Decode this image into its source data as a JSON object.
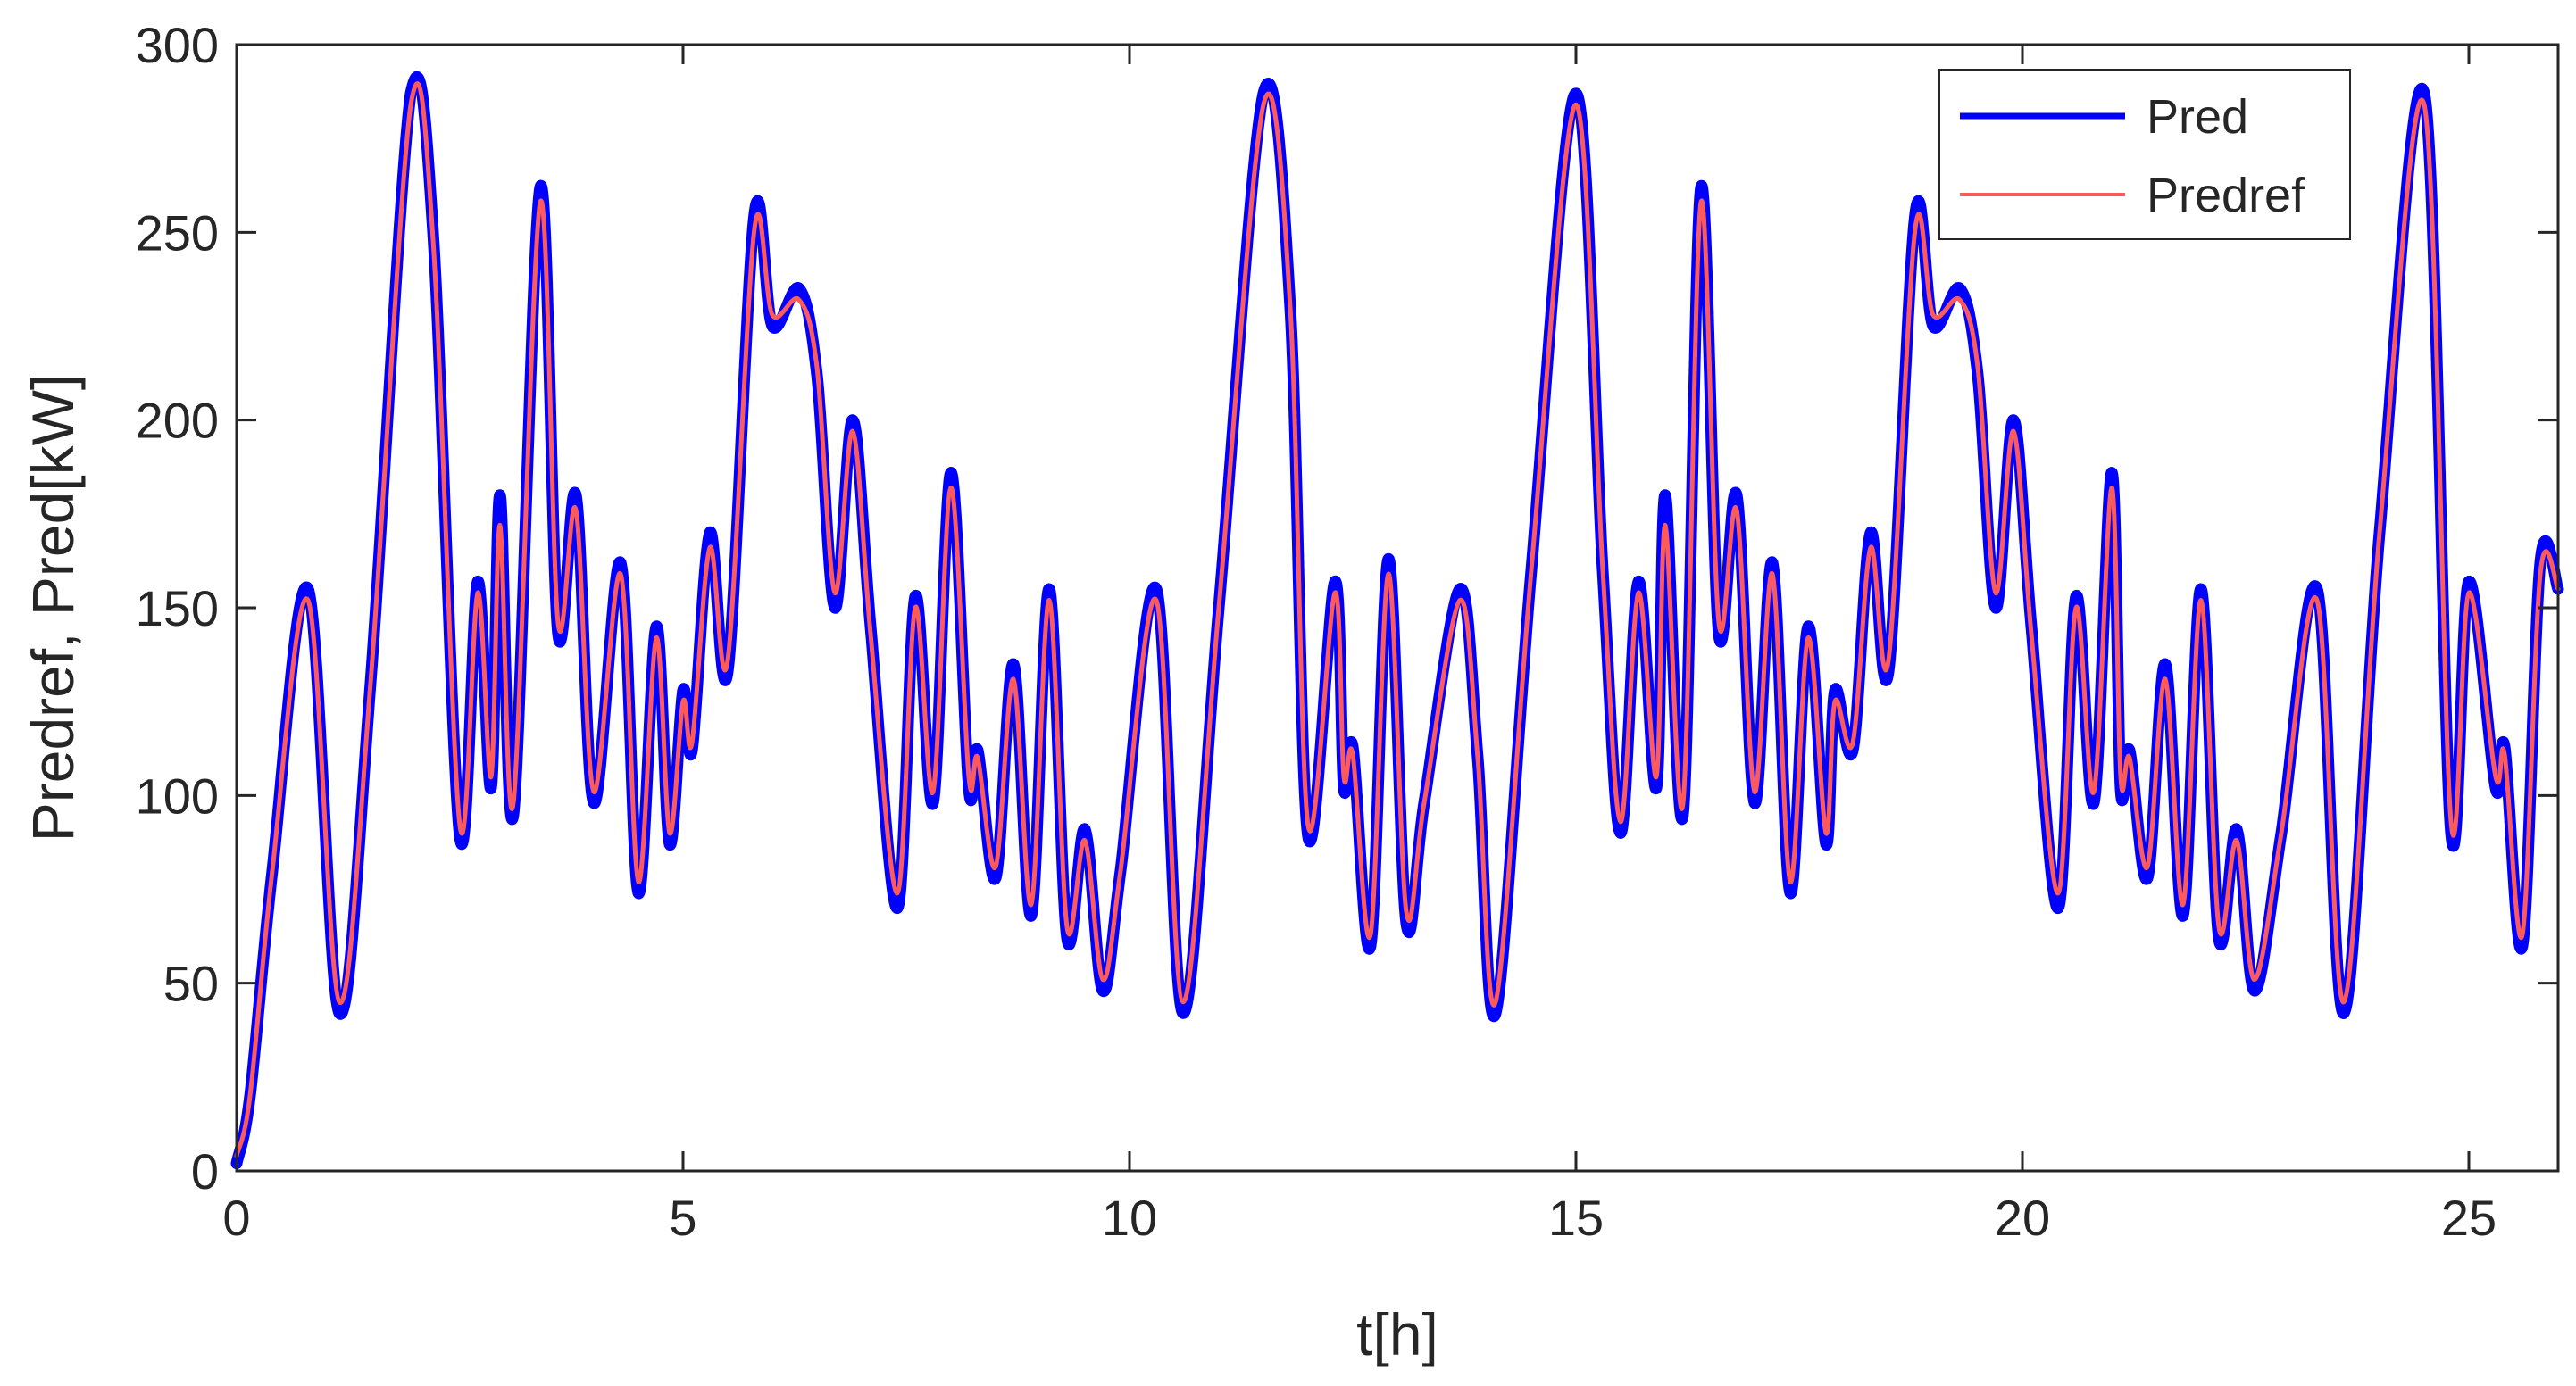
{
  "chart_data": {
    "type": "line",
    "xlabel": "t[h]",
    "ylabel": "Predref, Pred[kW]",
    "xlim": [
      0,
      26
    ],
    "ylim": [
      0,
      300
    ],
    "xticks": [
      0,
      5,
      10,
      15,
      20,
      25
    ],
    "yticks": [
      0,
      50,
      100,
      150,
      200,
      250,
      300
    ],
    "xtick_labels": [
      "0",
      "5",
      "10",
      "15",
      "20",
      "25"
    ],
    "ytick_labels": [
      "0",
      "50",
      "100",
      "150",
      "200",
      "250",
      "300"
    ],
    "grid": false,
    "legend_position": "top-right",
    "series": [
      {
        "name": "Pred",
        "color": "#0000ff",
        "x": [
          0,
          0.15,
          0.4,
          0.8,
          1.15,
          1.5,
          1.95,
          2.2,
          2.5,
          2.7,
          2.85,
          2.95,
          3.1,
          3.4,
          3.6,
          3.8,
          4.0,
          4.3,
          4.5,
          4.7,
          4.85,
          5.0,
          5.1,
          5.3,
          5.5,
          5.8,
          6.0,
          6.3,
          6.5,
          6.7,
          6.9,
          7.1,
          7.4,
          7.6,
          7.8,
          8.0,
          8.2,
          8.3,
          8.5,
          8.7,
          8.9,
          9.1,
          9.3,
          9.5,
          9.7,
          9.9,
          10.3,
          10.6,
          11.0,
          11.5,
          11.8,
          12.0,
          12.3,
          12.4,
          12.5,
          12.7,
          12.9,
          13.1,
          13.3,
          13.7,
          13.9,
          14.1,
          14.5,
          15.0,
          15.3,
          15.5,
          15.7,
          15.9,
          16.0,
          16.2,
          16.4,
          16.6,
          16.8,
          17.0,
          17.2,
          17.4,
          17.6,
          17.8,
          17.9,
          18.1,
          18.3,
          18.5,
          18.8,
          19.0,
          19.3,
          19.5,
          19.7,
          19.9,
          20.1,
          20.4,
          20.6,
          20.8,
          21.0,
          21.1,
          21.2,
          21.4,
          21.6,
          21.8,
          22.0,
          22.2,
          22.4,
          22.6,
          22.9,
          23.3,
          23.6,
          24.0,
          24.5,
          24.8,
          25.0,
          25.3,
          25.4,
          25.6,
          25.8,
          26.0
        ],
        "y": [
          2,
          20,
          80,
          155,
          42,
          130,
          287,
          250,
          89,
          157,
          102,
          180,
          95,
          262,
          143,
          180,
          98,
          162,
          74,
          145,
          87,
          128,
          112,
          170,
          133,
          255,
          225,
          235,
          212,
          150,
          200,
          145,
          70,
          153,
          98,
          186,
          102,
          112,
          78,
          135,
          68,
          155,
          62,
          91,
          48,
          80,
          155,
          42,
          150,
          287,
          230,
          89,
          157,
          102,
          113,
          60,
          163,
          66,
          98,
          155,
          110,
          42,
          160,
          287,
          160,
          90,
          157,
          102,
          180,
          95,
          262,
          143,
          180,
          98,
          162,
          74,
          145,
          87,
          128,
          112,
          170,
          133,
          255,
          225,
          235,
          212,
          150,
          200,
          145,
          70,
          153,
          98,
          186,
          102,
          112,
          78,
          135,
          68,
          155,
          62,
          91,
          48,
          90,
          155,
          42,
          170,
          287,
          90,
          157,
          102,
          113,
          60,
          162,
          155
        ]
      },
      {
        "name": "Predref",
        "color": "#ff5a5a",
        "x": [
          0,
          0.15,
          0.4,
          0.8,
          1.15,
          1.5,
          1.95,
          2.2,
          2.5,
          2.7,
          2.85,
          2.95,
          3.1,
          3.4,
          3.6,
          3.8,
          4.0,
          4.3,
          4.5,
          4.7,
          4.85,
          5.0,
          5.1,
          5.3,
          5.5,
          5.8,
          6.0,
          6.3,
          6.5,
          6.7,
          6.9,
          7.1,
          7.4,
          7.6,
          7.8,
          8.0,
          8.2,
          8.3,
          8.5,
          8.7,
          8.9,
          9.1,
          9.3,
          9.5,
          9.7,
          9.9,
          10.3,
          10.6,
          11.0,
          11.5,
          11.8,
          12.0,
          12.3,
          12.4,
          12.5,
          12.7,
          12.9,
          13.1,
          13.3,
          13.7,
          13.9,
          14.1,
          14.5,
          15.0,
          15.3,
          15.5,
          15.7,
          15.9,
          16.0,
          16.2,
          16.4,
          16.6,
          16.8,
          17.0,
          17.2,
          17.4,
          17.6,
          17.8,
          17.9,
          18.1,
          18.3,
          18.5,
          18.8,
          19.0,
          19.3,
          19.5,
          19.7,
          19.9,
          20.1,
          20.4,
          20.6,
          20.8,
          21.0,
          21.1,
          21.2,
          21.4,
          21.6,
          21.8,
          22.0,
          22.2,
          22.4,
          22.6,
          22.9,
          23.3,
          23.6,
          24.0,
          24.5,
          24.8,
          25.0,
          25.3,
          25.4,
          25.6,
          25.8,
          26.0
        ],
        "y": [
          4,
          20,
          80,
          152,
          45,
          130,
          284,
          248,
          92,
          154,
          105,
          172,
          98,
          258,
          146,
          176,
          101,
          159,
          77,
          142,
          90,
          125,
          114,
          166,
          136,
          251,
          228,
          232,
          214,
          154,
          197,
          143,
          74,
          150,
          101,
          182,
          105,
          110,
          81,
          131,
          71,
          152,
          65,
          88,
          51,
          80,
          152,
          45,
          150,
          284,
          230,
          92,
          154,
          105,
          111,
          63,
          159,
          69,
          98,
          152,
          110,
          45,
          160,
          284,
          160,
          93,
          154,
          105,
          172,
          98,
          258,
          146,
          176,
          101,
          159,
          77,
          142,
          90,
          125,
          114,
          166,
          136,
          251,
          228,
          232,
          214,
          154,
          197,
          143,
          74,
          150,
          101,
          182,
          105,
          110,
          81,
          131,
          71,
          152,
          65,
          88,
          51,
          90,
          152,
          45,
          170,
          284,
          93,
          154,
          105,
          111,
          63,
          159,
          155
        ]
      }
    ]
  }
}
